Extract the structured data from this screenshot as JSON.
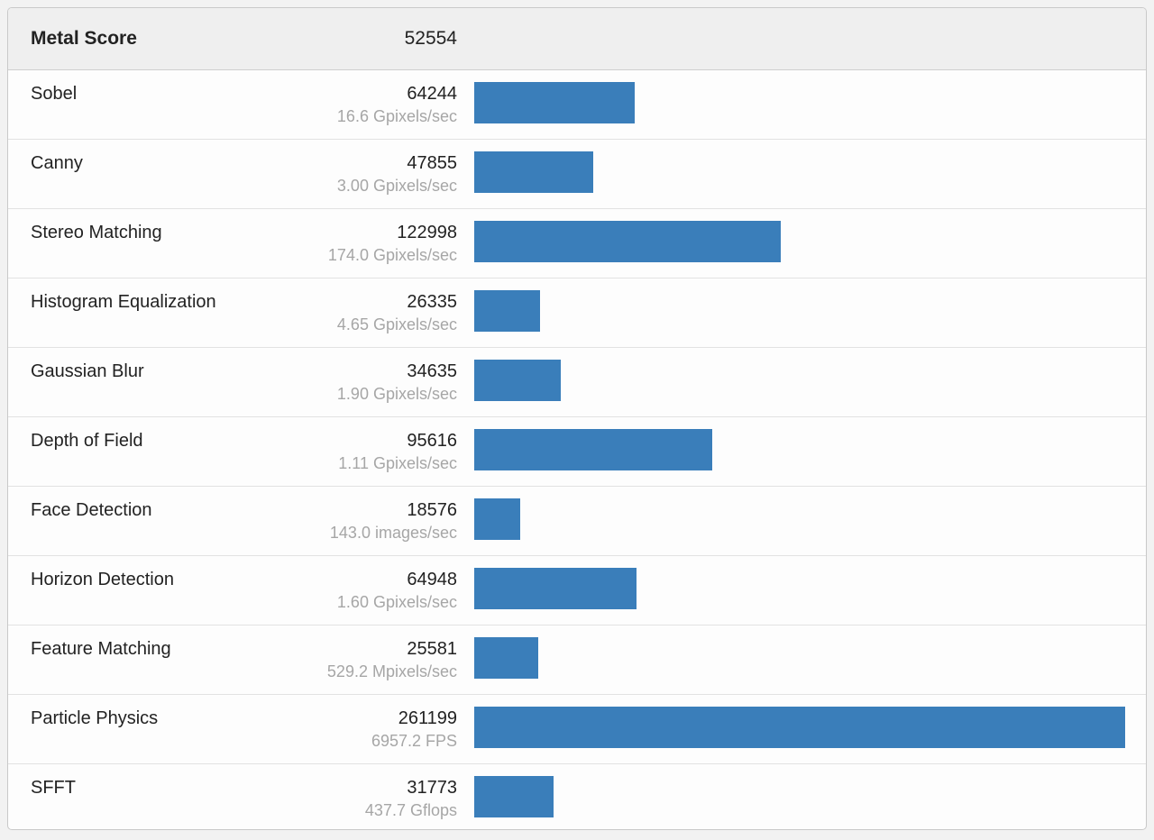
{
  "header": {
    "title": "Metal Score",
    "score": "52554"
  },
  "bar_color": "#3a7eba",
  "bar_max_score": 261199,
  "rows": [
    {
      "name": "Sobel",
      "score": "64244",
      "sub": "16.6 Gpixels/sec"
    },
    {
      "name": "Canny",
      "score": "47855",
      "sub": "3.00 Gpixels/sec"
    },
    {
      "name": "Stereo Matching",
      "score": "122998",
      "sub": "174.0 Gpixels/sec"
    },
    {
      "name": "Histogram Equalization",
      "score": "26335",
      "sub": "4.65 Gpixels/sec"
    },
    {
      "name": "Gaussian Blur",
      "score": "34635",
      "sub": "1.90 Gpixels/sec"
    },
    {
      "name": "Depth of Field",
      "score": "95616",
      "sub": "1.11 Gpixels/sec"
    },
    {
      "name": "Face Detection",
      "score": "18576",
      "sub": "143.0 images/sec"
    },
    {
      "name": "Horizon Detection",
      "score": "64948",
      "sub": "1.60 Gpixels/sec"
    },
    {
      "name": "Feature Matching",
      "score": "25581",
      "sub": "529.2 Mpixels/sec"
    },
    {
      "name": "Particle Physics",
      "score": "261199",
      "sub": "6957.2 FPS"
    },
    {
      "name": "SFFT",
      "score": "31773",
      "sub": "437.7 Gflops"
    }
  ]
}
